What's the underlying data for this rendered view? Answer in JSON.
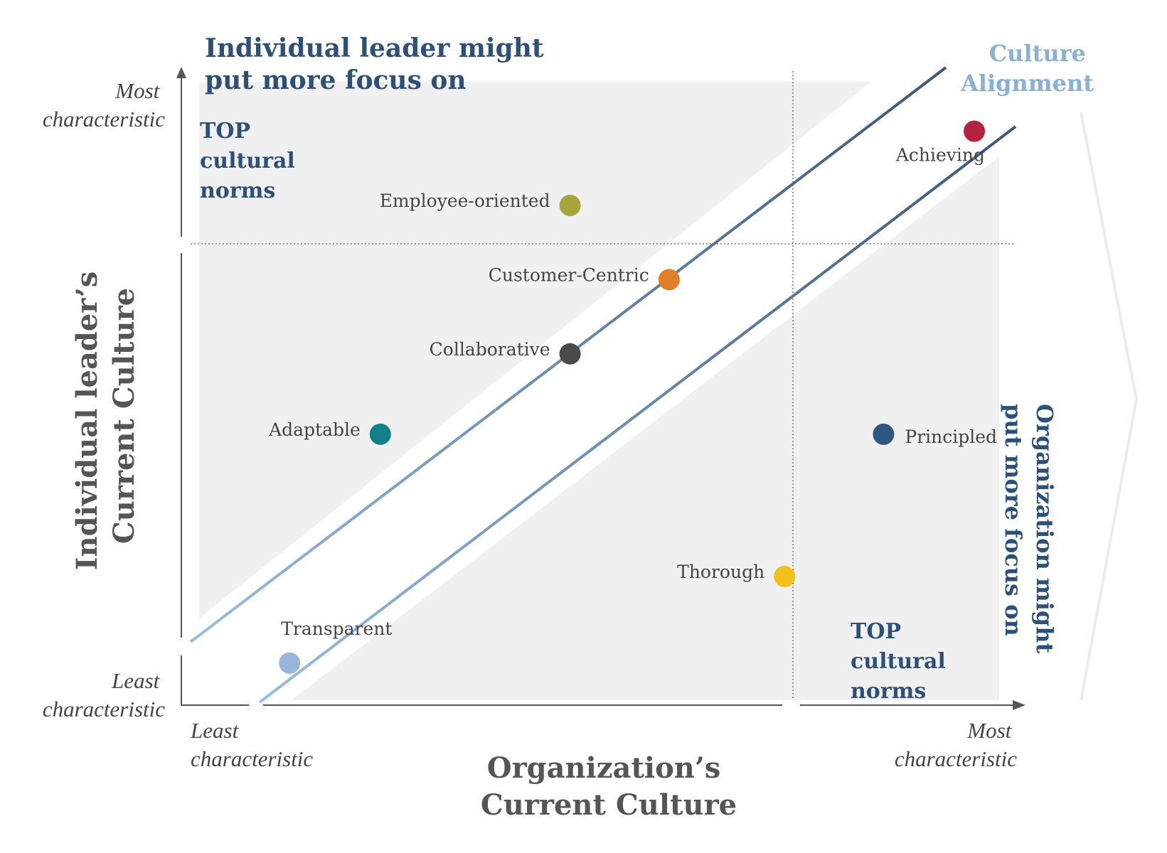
{
  "headings": {
    "individual_focus": [
      "Individual leader might",
      "put more focus on"
    ],
    "culture_alignment": [
      "Culture",
      "Alignment"
    ],
    "organization_focus": [
      "Organization might",
      "put more focus on"
    ],
    "top_norms_upper": [
      "TOP",
      "cultural",
      "norms"
    ],
    "top_norms_lower": [
      "TOP",
      "cultural",
      "norms"
    ]
  },
  "axes": {
    "y_title": [
      "Individual leader’s",
      "Current Culture"
    ],
    "x_title": [
      "Organization’s",
      "Current Culture"
    ],
    "y_high": [
      "Most",
      "characteristic"
    ],
    "y_low": [
      "Least",
      "characteristic"
    ],
    "x_low": [
      "Least",
      "characteristic"
    ],
    "x_high": [
      "Most",
      "characteristic"
    ]
  },
  "chart_data": {
    "type": "scatter",
    "xlabel": "Organization’s Current Culture",
    "ylabel": "Individual leader’s Current Culture",
    "xlim": [
      0,
      10
    ],
    "ylim": [
      0,
      10
    ],
    "points": [
      {
        "label": "Achieving",
        "x": 9.5,
        "y": 9.2,
        "color": "#b5223f"
      },
      {
        "label": "Employee-oriented",
        "x": 4.6,
        "y": 8.0,
        "color": "#a6a43a"
      },
      {
        "label": "Customer-Centric",
        "x": 5.8,
        "y": 6.8,
        "color": "#e0802a"
      },
      {
        "label": "Collaborative",
        "x": 4.6,
        "y": 5.6,
        "color": "#4a4a4a"
      },
      {
        "label": "Adaptable",
        "x": 2.3,
        "y": 4.3,
        "color": "#138089"
      },
      {
        "label": "Principled",
        "x": 8.4,
        "y": 4.3,
        "color": "#2f5583"
      },
      {
        "label": "Thorough",
        "x": 7.2,
        "y": 2.0,
        "color": "#f2c01a"
      },
      {
        "label": "Transparent",
        "x": 1.2,
        "y": 0.6,
        "color": "#98b6d9"
      }
    ]
  },
  "colors": {
    "heading": "#2d4f78",
    "alignment_heading": "#8ab0d6",
    "band_line_dark": "#3d5576",
    "band_line_light": "#9abde0",
    "region_fill": "#f0f0f0",
    "text": "#444444",
    "axis": "#555555"
  }
}
